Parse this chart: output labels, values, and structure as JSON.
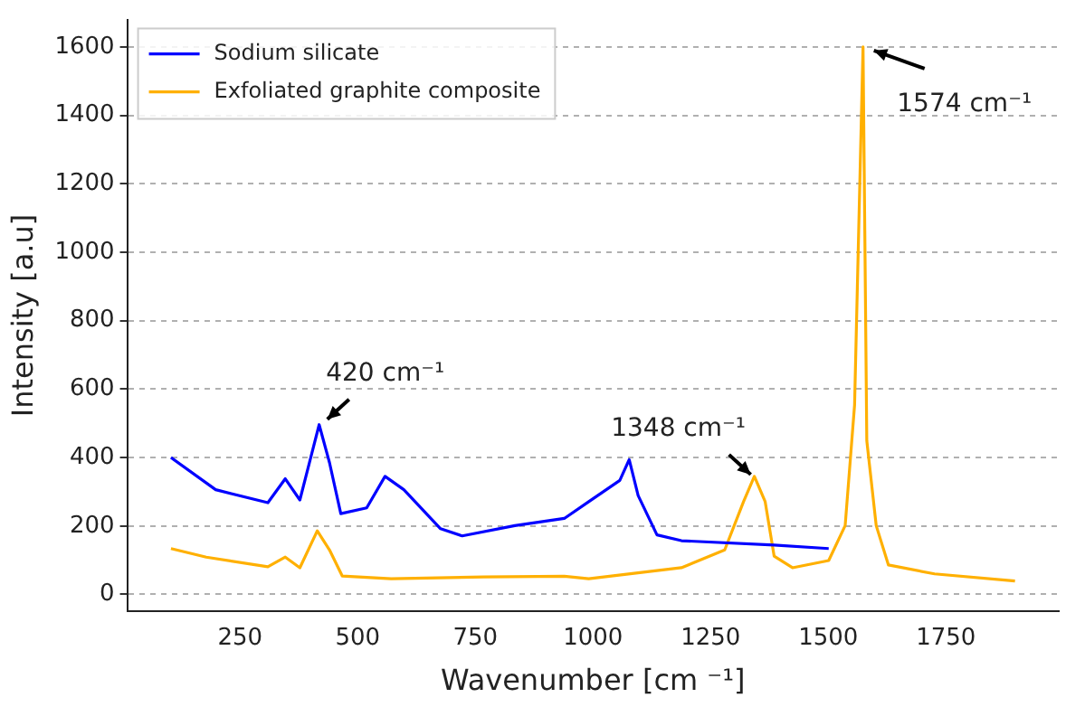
{
  "chart_data": {
    "type": "line",
    "xlabel": "Wavenumber [cm ⁻¹]",
    "ylabel": "Intensity [a.u]",
    "xlim": [
      10,
      1990
    ],
    "xticks": [
      250,
      500,
      750,
      1000,
      1250,
      1500,
      1750
    ],
    "ylim": [
      -50,
      1680
    ],
    "yticks": [
      0,
      200,
      400,
      600,
      800,
      1000,
      1200,
      1400,
      1600
    ],
    "grid": "y",
    "legend": "top left",
    "series": [
      {
        "name": "Sodium silicate",
        "color": "#0000ff",
        "x": [
          103,
          198,
          309,
          346,
          377,
          418,
          440,
          464,
          519,
          558,
          598,
          676,
          722,
          834,
          939,
          991,
          1057,
          1077,
          1096,
          1136,
          1188,
          1385,
          1501
        ],
        "values": [
          400,
          306,
          268,
          338,
          276,
          496,
          385,
          236,
          253,
          345,
          306,
          192,
          171,
          201,
          222,
          271,
          333,
          394,
          289,
          174,
          157,
          144,
          134
        ]
      },
      {
        "name": "Exfoliated graphite composite",
        "color": "#ffb000",
        "x": [
          103,
          178,
          309,
          346,
          377,
          414,
          440,
          467,
          571,
          768,
          939,
          991,
          1188,
          1280,
          1320,
          1343,
          1366,
          1385,
          1424,
          1501,
          1536,
          1556,
          1574,
          1582,
          1602,
          1628,
          1726,
          1897
        ],
        "values": [
          134,
          109,
          81,
          109,
          78,
          186,
          130,
          54,
          46,
          51,
          53,
          46,
          78,
          130,
          271,
          345,
          271,
          112,
          78,
          99,
          201,
          553,
          1600,
          449,
          201,
          86,
          60,
          39
        ]
      }
    ],
    "annotations": [
      {
        "text": "420 cm⁻¹",
        "x": 420,
        "y": 496
      },
      {
        "text": "1348 cm⁻¹",
        "x": 1343,
        "y": 345
      },
      {
        "text": "1574 cm⁻¹",
        "x": 1574,
        "y": 1600
      }
    ]
  }
}
